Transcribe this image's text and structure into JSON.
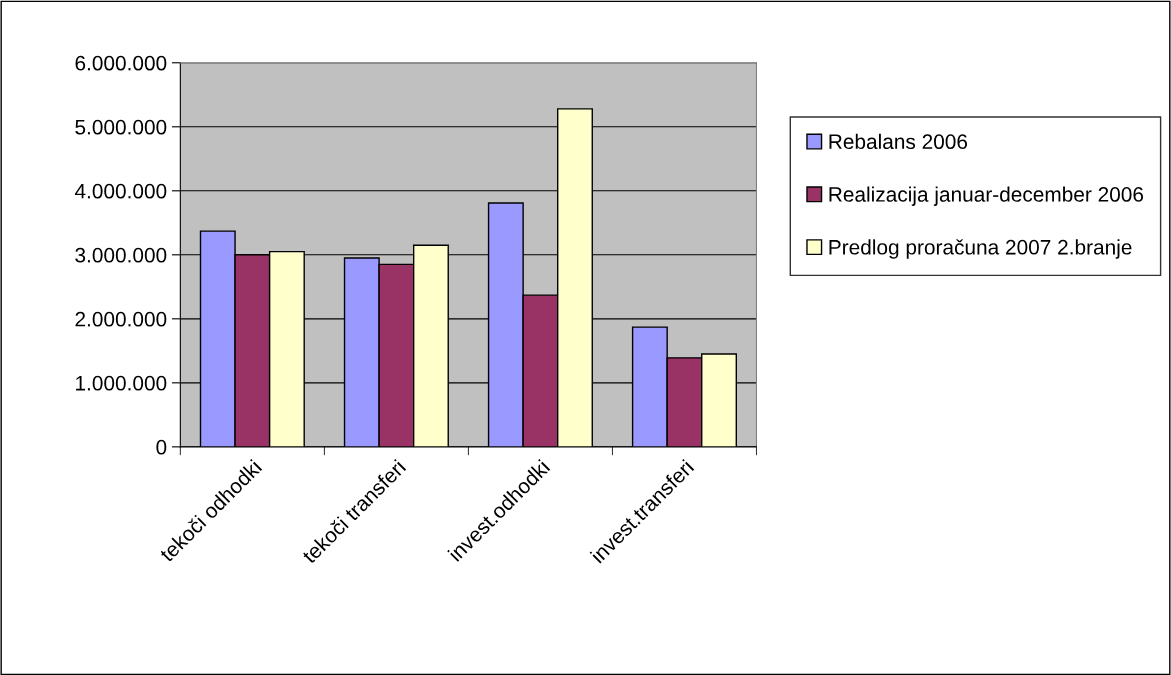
{
  "chart_data": {
    "type": "bar",
    "categories": [
      "tekoči odhodki",
      "tekoči transferi",
      "invest.odhodki",
      "invest.transferi"
    ],
    "series": [
      {
        "name": "Rebalans 2006",
        "color": "#9999ff",
        "values": [
          3370000,
          2950000,
          3810000,
          1870000
        ]
      },
      {
        "name": "Realizacija januar-december 2006",
        "color": "#993366",
        "values": [
          3000000,
          2850000,
          2370000,
          1390000
        ]
      },
      {
        "name": "Predlog proračuna 2007 2.branje",
        "color": "#ffffcc",
        "values": [
          3050000,
          3150000,
          5280000,
          1450000
        ]
      }
    ],
    "ylim": [
      0,
      6000000
    ],
    "yticks": [
      0,
      {
        "value": 1000000,
        "label": "1.000.000"
      },
      {
        "value": 2000000,
        "label": "2.000.000"
      },
      {
        "value": 3000000,
        "label": "3.000.000"
      },
      {
        "value": 4000000,
        "label": "4.000.000"
      },
      {
        "value": 5000000,
        "label": "5.000.000"
      },
      {
        "value": 6000000,
        "label": "6.000.000"
      }
    ],
    "grid": "y",
    "legend": "right"
  }
}
